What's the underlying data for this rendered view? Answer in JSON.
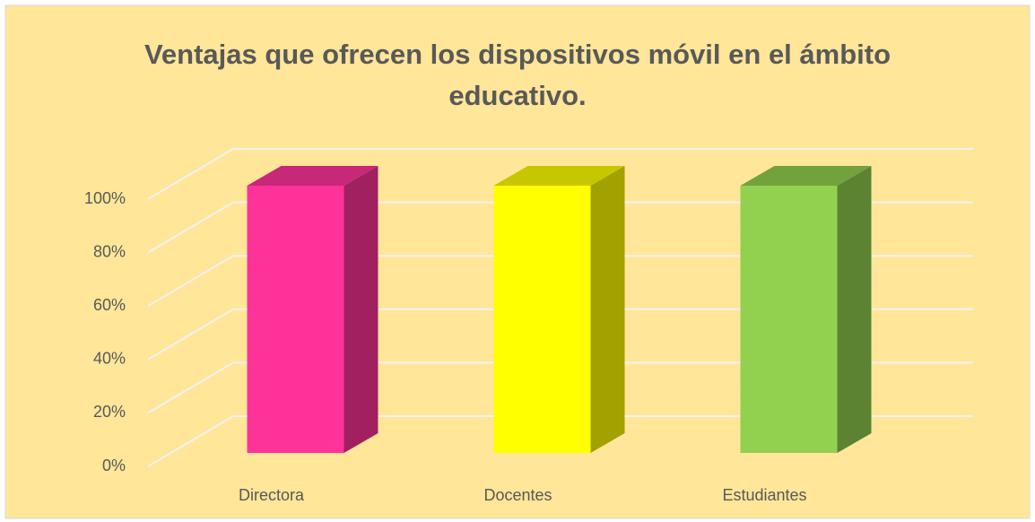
{
  "chart_data": {
    "type": "bar",
    "title": "Ventajas que ofrecen los dispositivos móvil en el ámbito educativo.",
    "categories": [
      "Directora",
      "Docentes",
      "Estudiantes"
    ],
    "values": [
      100,
      100,
      100
    ],
    "colors": [
      "#ff3399",
      "#ffff00",
      "#92d050"
    ],
    "ylim": [
      0,
      100
    ],
    "yticks": [
      {
        "value": 0,
        "label": "0%"
      },
      {
        "value": 20,
        "label": "20%"
      },
      {
        "value": 40,
        "label": "40%"
      },
      {
        "value": 60,
        "label": "60%"
      },
      {
        "value": 80,
        "label": "80%"
      },
      {
        "value": 100,
        "label": "100%"
      }
    ],
    "grid": true
  }
}
